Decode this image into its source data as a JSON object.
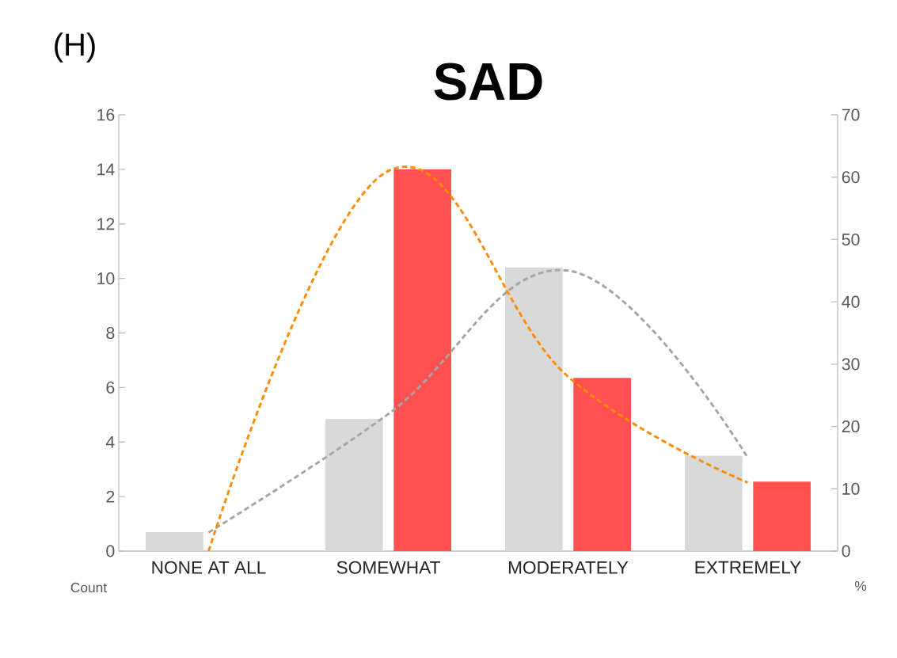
{
  "chart_data": {
    "type": "bar",
    "title": "SAD",
    "annotations": [
      "(H)"
    ],
    "ylabel": "Count",
    "y2label": "%",
    "categories": [
      "NONE AT ALL",
      "SOMEWHAT",
      "MODERATELY",
      "EXTREMELY"
    ],
    "series": [
      {
        "color": "#d9d9d9",
        "values": [
          0.7,
          4.85,
          10.4,
          3.5
        ]
      },
      {
        "color": "#ff5050",
        "values": [
          0,
          14,
          6.35,
          2.55
        ]
      },
      {
        "type": "line",
        "axis": "y2",
        "color": "#a6a6a6",
        "line_style": "dashed",
        "values": [
          3,
          22,
          45,
          15
        ]
      },
      {
        "type": "line",
        "axis": "y2",
        "color": "#ff8c00",
        "line_style": "dashed",
        "values": [
          0,
          61,
          28,
          11
        ]
      }
    ],
    "ylim": [
      0,
      16
    ],
    "yticks": [
      0,
      2,
      4,
      6,
      8,
      10,
      12,
      14,
      16
    ],
    "y2lim": [
      0,
      70
    ],
    "y2ticks": [
      0,
      10,
      20,
      30,
      40,
      50,
      60,
      70
    ]
  }
}
